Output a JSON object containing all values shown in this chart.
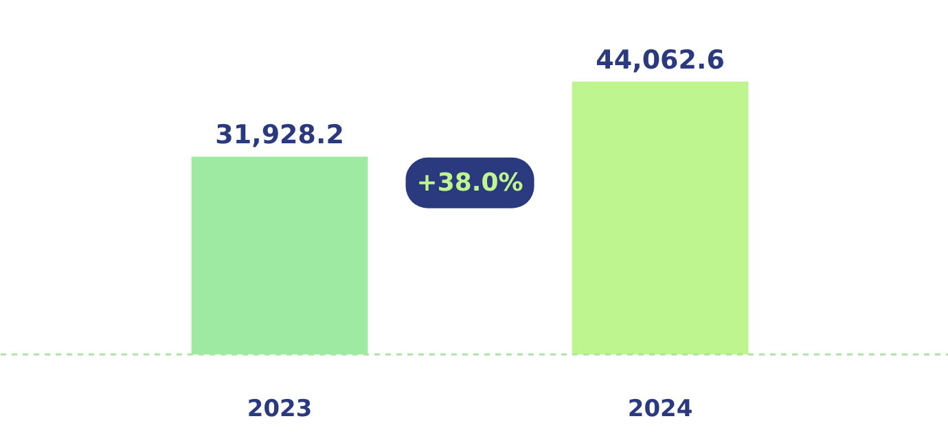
{
  "chart_data": {
    "type": "bar",
    "categories": [
      "2023",
      "2024"
    ],
    "values": [
      31928.2,
      44062.6
    ],
    "colors": [
      "#9eeaa2",
      "#bef58f"
    ],
    "data_labels": true,
    "value_labels": [
      "31,928.2",
      "44,062.6"
    ],
    "annotations": [
      "+38.0%"
    ]
  }
}
